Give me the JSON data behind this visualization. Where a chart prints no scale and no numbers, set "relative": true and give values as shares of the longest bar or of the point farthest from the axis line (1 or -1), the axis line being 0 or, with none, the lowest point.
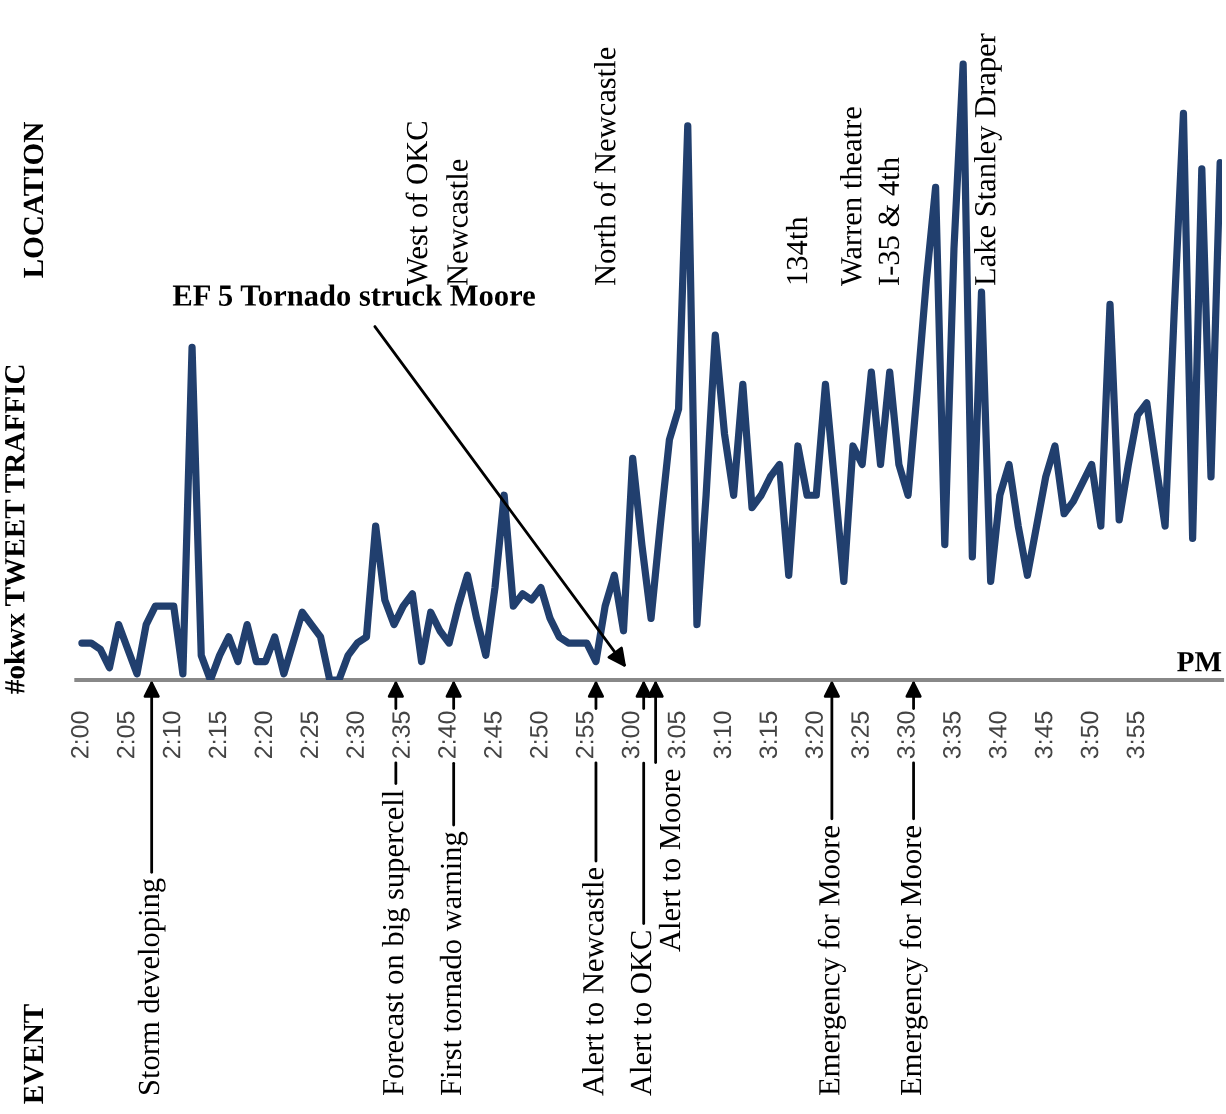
{
  "chart_data": {
    "type": "line",
    "relative": true,
    "ylabel": "#okwx TWEET TRAFFIC",
    "xlabel": "PM",
    "categories": [
      "2:00",
      null,
      null,
      null,
      null,
      "2:05",
      null,
      null,
      null,
      null,
      "2:10",
      null,
      null,
      null,
      null,
      "2:15",
      null,
      null,
      null,
      null,
      "2:20",
      null,
      null,
      null,
      null,
      "2:25",
      null,
      null,
      null,
      null,
      "2:30",
      null,
      null,
      null,
      null,
      "2:35",
      null,
      null,
      null,
      null,
      "2:40",
      null,
      null,
      null,
      null,
      "2:45",
      null,
      null,
      null,
      null,
      "2:50",
      null,
      null,
      null,
      null,
      "2:55",
      null,
      null,
      null,
      null,
      "3:00",
      null,
      null,
      null,
      null,
      "3:05",
      null,
      null,
      null,
      null,
      "3:10",
      null,
      null,
      null,
      null,
      "3:15",
      null,
      null,
      null,
      null,
      "3:20",
      null,
      null,
      null,
      null,
      "3:25",
      null,
      null,
      null,
      null,
      "3:30",
      null,
      null,
      null,
      null,
      "3:35",
      null,
      null,
      null,
      null,
      "3:40",
      null,
      null,
      null,
      null,
      "3:45",
      null,
      null,
      null,
      null,
      "3:50",
      null,
      null,
      null,
      null,
      "3:55",
      null,
      null,
      null,
      null,
      null,
      null,
      null,
      null,
      null
    ],
    "series": [
      {
        "color": "#213f6e",
        "values": [
          0.06,
          0.06,
          0.05,
          0.02,
          0.09,
          0.05,
          0.01,
          0.09,
          0.12,
          0.12,
          0.12,
          0.01,
          0.54,
          0.04,
          0,
          0.04,
          0.07,
          0.03,
          0.09,
          0.03,
          0.03,
          0.07,
          0.01,
          0.06,
          0.11,
          0.09,
          0.07,
          0,
          0,
          0.04,
          0.06,
          0.07,
          0.25,
          0.13,
          0.09,
          0.12,
          0.14,
          0.03,
          0.11,
          0.08,
          0.06,
          0.12,
          0.17,
          0.1,
          0.04,
          0.15,
          0.3,
          0.12,
          0.14,
          0.13,
          0.15,
          0.1,
          0.07,
          0.06,
          0.06,
          0.06,
          0.03,
          0.12,
          0.17,
          0.08,
          0.36,
          0.22,
          0.1,
          0.25,
          0.39,
          0.44,
          0.9,
          0.09,
          0.3,
          0.56,
          0.4,
          0.3,
          0.48,
          0.28,
          0.3,
          0.33,
          0.35,
          0.17,
          0.38,
          0.3,
          0.3,
          0.48,
          0.32,
          0.16,
          0.38,
          0.35,
          0.5,
          0.35,
          0.5,
          0.35,
          0.3,
          0.47,
          0.65,
          0.8,
          0.22,
          0.7,
          1,
          0.2,
          0.63,
          0.16,
          0.3,
          0.35,
          0.25,
          0.17,
          0.25,
          0.33,
          0.38,
          0.27,
          0.29,
          0.32,
          0.35,
          0.25,
          0.61,
          0.26,
          0.35,
          0.43,
          0.45,
          0.35,
          0.25,
          0.6,
          0.92,
          0.23,
          0.83,
          0.33,
          0.84
        ]
      }
    ],
    "annotations": [
      "LOCATION",
      "EVENT",
      "West of OKC",
      "Newcastle",
      "North of Newcastle",
      "134th",
      "Warren theatre",
      "I-35 & 4th",
      "Lake Stanley Draper",
      "EF 5 Tornado struck Moore",
      "Storm developing",
      "Forecast on big supercell",
      "First tornado warning",
      "Alert to Newcastle",
      "Alert to OKC",
      "Alert to Moore",
      "Emergency for Moore",
      "Emergency for Moore"
    ]
  }
}
